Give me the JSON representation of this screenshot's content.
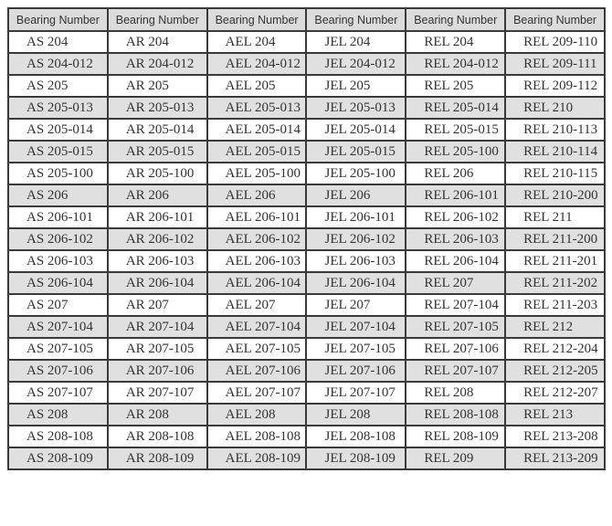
{
  "colors": {
    "header_bg": "#dcdcdc",
    "stripe_bg": "#e0e0e0",
    "row_bg": "#ffffff",
    "border_color": "#3a3a3a",
    "text_color": "#333333",
    "page_bg": "#ffffff"
  },
  "table": {
    "columns": [
      "Bearing Number",
      "Bearing Number",
      "Bearing Number",
      "Bearing Number",
      "Bearing Number",
      "Bearing Number"
    ],
    "rows": [
      [
        "AS 204",
        "AR 204",
        "AEL 204",
        "JEL 204",
        "REL 204",
        "REL 209-110"
      ],
      [
        "AS 204-012",
        "AR 204-012",
        "AEL 204-012",
        "JEL 204-012",
        "REL 204-012",
        "REL 209-111"
      ],
      [
        "AS 205",
        "AR 205",
        "AEL 205",
        "JEL 205",
        "REL 205",
        "REL 209-112"
      ],
      [
        "AS 205-013",
        "AR 205-013",
        "AEL 205-013",
        "JEL 205-013",
        "REL 205-014",
        "REL 210"
      ],
      [
        "AS 205-014",
        "AR 205-014",
        "AEL 205-014",
        "JEL 205-014",
        "REL 205-015",
        "REL 210-113"
      ],
      [
        "AS 205-015",
        "AR 205-015",
        "AEL 205-015",
        "JEL 205-015",
        "REL 205-100",
        "REL 210-114"
      ],
      [
        "AS 205-100",
        "AR 205-100",
        "AEL 205-100",
        "JEL 205-100",
        "REL 206",
        "REL 210-115"
      ],
      [
        "AS 206",
        "AR 206",
        "AEL 206",
        "JEL 206",
        "REL 206-101",
        "REL 210-200"
      ],
      [
        "AS 206-101",
        "AR 206-101",
        "AEL 206-101",
        "JEL 206-101",
        "REL 206-102",
        "REL 211"
      ],
      [
        "AS 206-102",
        "AR 206-102",
        "AEL 206-102",
        "JEL 206-102",
        "REL 206-103",
        "REL 211-200"
      ],
      [
        "AS 206-103",
        "AR 206-103",
        "AEL 206-103",
        "JEL 206-103",
        "REL 206-104",
        "REL 211-201"
      ],
      [
        "AS 206-104",
        "AR 206-104",
        "AEL 206-104",
        "JEL 206-104",
        "REL 207",
        "REL 211-202"
      ],
      [
        "AS 207",
        "AR 207",
        "AEL 207",
        "JEL 207",
        "REL 207-104",
        "REL 211-203"
      ],
      [
        "AS 207-104",
        "AR 207-104",
        "AEL 207-104",
        "JEL 207-104",
        "REL 207-105",
        "REL 212"
      ],
      [
        "AS 207-105",
        "AR 207-105",
        "AEL 207-105",
        "JEL 207-105",
        "REL 207-106",
        "REL 212-204"
      ],
      [
        "AS 207-106",
        "AR 207-106",
        "AEL 207-106",
        "JEL 207-106",
        "REL 207-107",
        "REL 212-205"
      ],
      [
        "AS 207-107",
        "AR 207-107",
        "AEL 207-107",
        "JEL 207-107",
        "REL 208",
        "REL 212-207"
      ],
      [
        "AS 208",
        "AR 208",
        "AEL 208",
        "JEL 208",
        "REL 208-108",
        "REL 213"
      ],
      [
        "AS 208-108",
        "AR 208-108",
        "AEL 208-108",
        "JEL 208-108",
        "REL 208-109",
        "REL 213-208"
      ],
      [
        "AS 208-109",
        "AR 208-109",
        "AEL 208-109",
        "JEL 208-109",
        "REL 209",
        "REL 213-209"
      ]
    ]
  }
}
